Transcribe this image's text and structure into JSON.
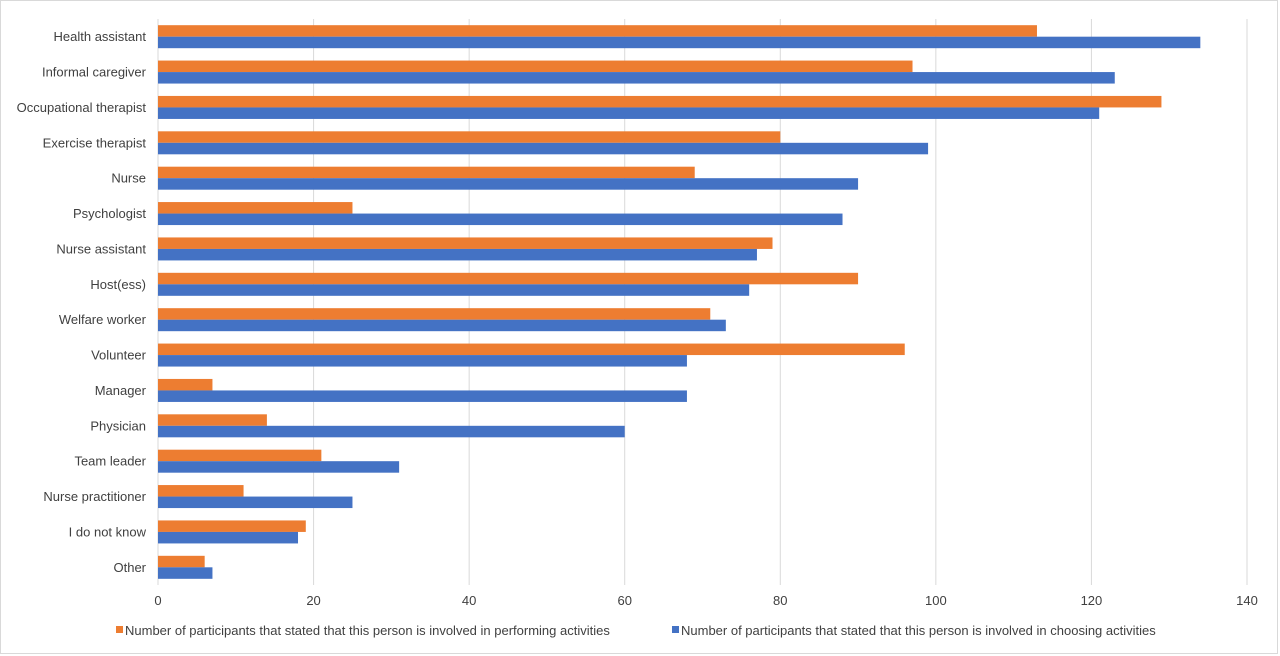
{
  "chart_data": {
    "type": "bar",
    "orientation": "horizontal",
    "title": "",
    "xlabel": "",
    "ylabel": "",
    "xlim": [
      0,
      140
    ],
    "x_ticks": [
      0,
      20,
      40,
      60,
      80,
      100,
      120,
      140
    ],
    "grid": "vertical gridlines on",
    "legend_position": "bottom",
    "categories": [
      "Health assistant",
      "Informal caregiver",
      "Occupational therapist",
      "Exercise therapist",
      "Nurse",
      "Psychologist",
      "Nurse assistant",
      "Host(ess)",
      "Welfare worker",
      "Volunteer",
      "Manager",
      "Physician",
      "Team leader",
      "Nurse practitioner",
      "I do not know",
      "Other"
    ],
    "series": [
      {
        "name": "Number of participants that stated that this person is involved in performing activities",
        "color": "#ED7D31",
        "values": [
          113,
          97,
          129,
          80,
          69,
          25,
          79,
          90,
          71,
          96,
          7,
          14,
          21,
          11,
          19,
          6
        ]
      },
      {
        "name": "Number of participants that stated that this person is involved in choosing activities",
        "color": "#4472C4",
        "values": [
          134,
          123,
          121,
          99,
          90,
          88,
          77,
          76,
          73,
          68,
          68,
          60,
          31,
          25,
          18,
          7
        ]
      }
    ]
  }
}
